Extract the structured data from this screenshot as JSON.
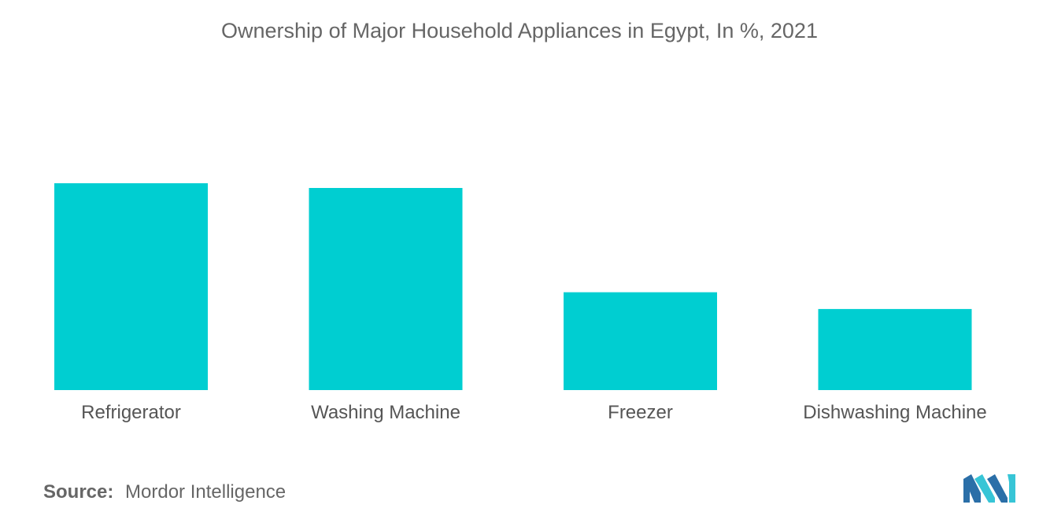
{
  "chart_data": {
    "type": "bar",
    "title": "Ownership of Major Household Appliances in Egypt, In %, 2021",
    "categories": [
      "Refrigerator",
      "Washing Machine",
      "Freezer",
      "Dishwashing Machine"
    ],
    "values": [
      100,
      97.7,
      47.3,
      39.2
    ],
    "bar_color": "#00CED1",
    "xlabel": "",
    "ylabel": "",
    "grid": false,
    "legend": "none"
  },
  "source": {
    "label": "Source:",
    "value": "Mordor Intelligence"
  },
  "logo": {
    "icon": "mordor-intelligence-logo-icon",
    "colors": [
      "#2B6FA8",
      "#37C5D6"
    ]
  }
}
